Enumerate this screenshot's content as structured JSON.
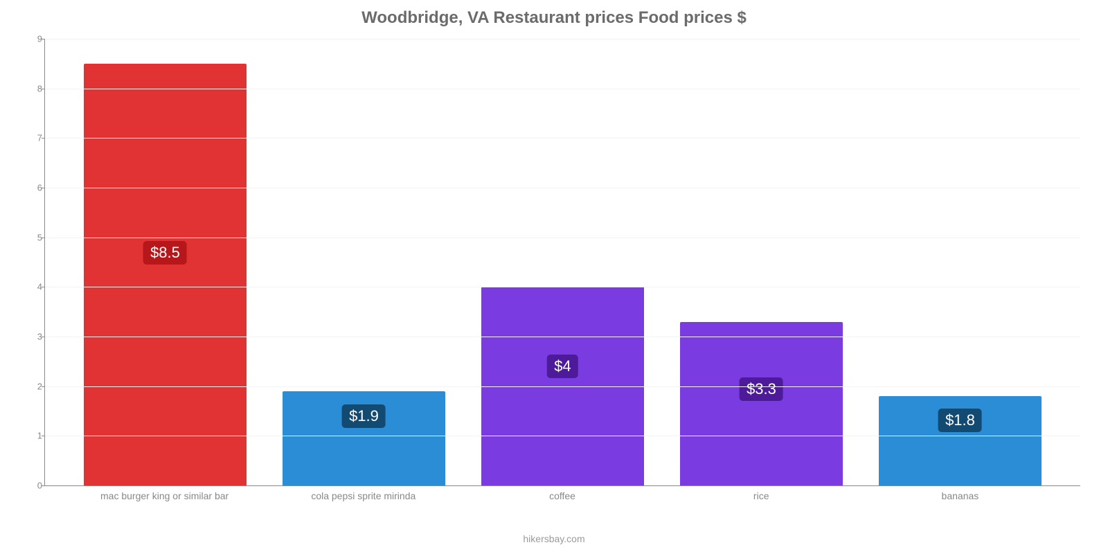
{
  "chart": {
    "type": "bar",
    "title": "Woodbridge, VA Restaurant prices Food prices $",
    "title_color": "#6b6b6b",
    "title_fontsize": 24,
    "background_color": "#ffffff",
    "grid_color": "#f3f3f3",
    "axis_color": "#888888",
    "label_color": "#888888",
    "label_fontsize": 14,
    "ylim_min": 0,
    "ylim_max": 9,
    "ytick_step": 1,
    "yticks": [
      0,
      1,
      2,
      3,
      4,
      5,
      6,
      7,
      8,
      9
    ],
    "bar_width_pct": 82,
    "attribution": "hikersbay.com",
    "value_label_fontsize": 22,
    "bars": [
      {
        "category": "mac burger king or similar bar",
        "value": 8.5,
        "value_label": "$8.5",
        "color": "#e13334",
        "badge_color": "#b5171b"
      },
      {
        "category": "cola pepsi sprite mirinda",
        "value": 1.9,
        "value_label": "$1.9",
        "color": "#2b8dd6",
        "badge_color": "#134a72"
      },
      {
        "category": "coffee",
        "value": 4.0,
        "value_label": "$4",
        "color": "#7a3be0",
        "badge_color": "#4d1b9a"
      },
      {
        "category": "rice",
        "value": 3.3,
        "value_label": "$3.3",
        "color": "#7a3be0",
        "badge_color": "#4d1b9a"
      },
      {
        "category": "bananas",
        "value": 1.8,
        "value_label": "$1.8",
        "color": "#2b8dd6",
        "badge_color": "#134a72"
      }
    ]
  }
}
